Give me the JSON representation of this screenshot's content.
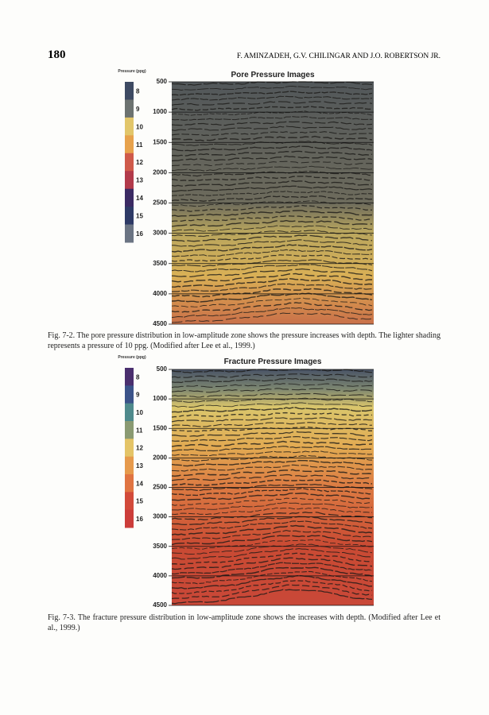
{
  "header": {
    "page_number": "180",
    "authors": "F. AMINZADEH, G.V. CHILINGAR AND J.O. ROBERTSON JR."
  },
  "figures": [
    {
      "title": "Pore Pressure Images",
      "colorbar_label": "Pressure (ppg)",
      "colorbar_ticks": [
        8,
        9,
        10,
        11,
        12,
        13,
        14,
        15,
        16
      ],
      "depth_ticks": [
        500,
        1000,
        1500,
        2000,
        2500,
        3000,
        3500,
        4000,
        4500
      ],
      "caption": "Fig. 7-2. The pore pressure distribution in low-amplitude zone shows the pressure increases with depth. The lighter shading represents a pressure of 10 ppg. (Modified after Lee et al., 1999.)"
    },
    {
      "title": "Fracture Pressure Images",
      "colorbar_label": "Pressure (ppg)",
      "colorbar_ticks": [
        8,
        9,
        10,
        11,
        12,
        13,
        14,
        15,
        16
      ],
      "depth_ticks": [
        500,
        1000,
        1500,
        2000,
        2500,
        3000,
        3500,
        4000,
        4500
      ],
      "caption": "Fig. 7-3. The fracture pressure distribution in low-amplitude zone shows the increases with depth. (Modified after Lee et al., 1999.)"
    }
  ]
}
